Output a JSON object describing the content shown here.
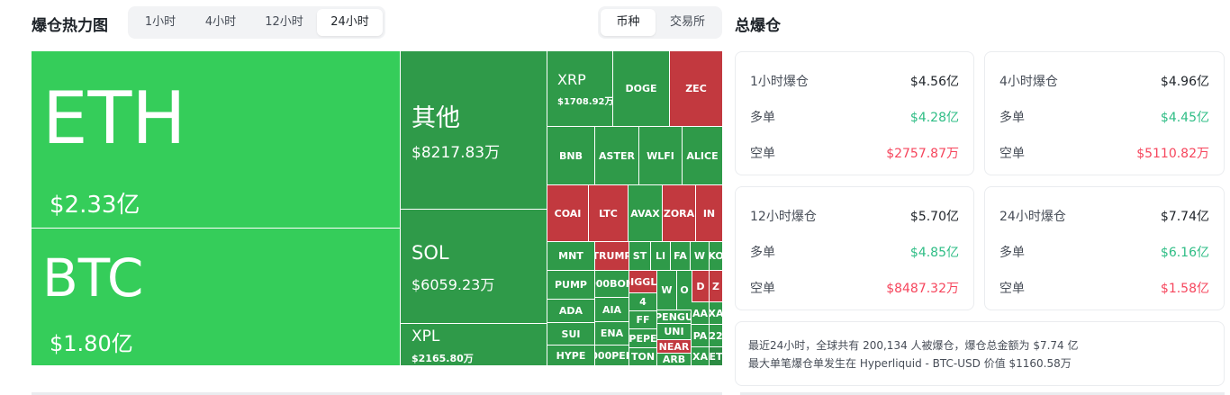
{
  "header": {
    "title": "爆仓热力图",
    "time_tabs": [
      "1小时",
      "4小时",
      "12小时",
      "24小时"
    ],
    "active_time_tab": "24小时",
    "group_tabs": [
      "币种",
      "交易所"
    ],
    "active_group_tab": "币种"
  },
  "treemap": {
    "big": [
      {
        "symbol": "ETH",
        "amount": "$2.33亿",
        "color": "#35cd5a"
      },
      {
        "symbol": "BTC",
        "amount": "$1.80亿",
        "color": "#35cd5a"
      }
    ],
    "mid": [
      {
        "symbol": "其他",
        "amount": "$8217.83万"
      },
      {
        "symbol": "SOL",
        "amount": "$6059.23万"
      },
      {
        "symbol": "XPL",
        "amount": "$2165.80万"
      }
    ],
    "xrp": {
      "symbol": "XRP",
      "amount": "$1708.92万"
    },
    "small": [
      "DOGE",
      "ZEC",
      "BNB",
      "ASTER",
      "WLFI",
      "ALICE",
      "COAI",
      "LTC",
      "AVAX",
      "ZORA",
      "IN",
      "MNT",
      "TRUMP",
      "ST",
      "LI",
      "FA",
      "W",
      "KO",
      "PUMP",
      "1000BONK",
      "GIGGLE",
      "W",
      "O",
      "D",
      "Z",
      "ADA",
      "AIA",
      "4",
      "FF",
      "PENGU",
      "AA",
      "XA",
      "SUI",
      "ENA",
      "UNI",
      "PEPE",
      "PA",
      "22",
      "HYPE",
      "1000PEPE",
      "TON",
      "NEAR",
      "XA",
      "ET",
      "ARB"
    ]
  },
  "stats": {
    "title": "总爆仓",
    "cards": [
      {
        "label": "1小时爆仓",
        "total": "$4.56亿",
        "long_label": "多单",
        "long": "$4.28亿",
        "short_label": "空单",
        "short": "$2757.87万"
      },
      {
        "label": "4小时爆仓",
        "total": "$4.96亿",
        "long_label": "多单",
        "long": "$4.45亿",
        "short_label": "空单",
        "short": "$5110.82万"
      },
      {
        "label": "12小时爆仓",
        "total": "$5.70亿",
        "long_label": "多单",
        "long": "$4.85亿",
        "short_label": "空单",
        "short": "$8487.32万"
      },
      {
        "label": "24小时爆仓",
        "total": "$7.74亿",
        "long_label": "多单",
        "long": "$6.16亿",
        "short_label": "空单",
        "short": "$1.58亿"
      }
    ],
    "summary_line1": "最近24小时，全球共有 200,134 人被爆仓，爆仓总金额为 $7.74 亿",
    "summary_line2": "最大单笔爆仓单发生在 Hyperliquid - BTC-USD 价值 $1160.58万"
  },
  "colors": {
    "up": "#2ebd85",
    "down": "#f6465d",
    "green_large": "#35cd5a",
    "green_mid": "#2f9a49",
    "red": "#c2393f"
  }
}
